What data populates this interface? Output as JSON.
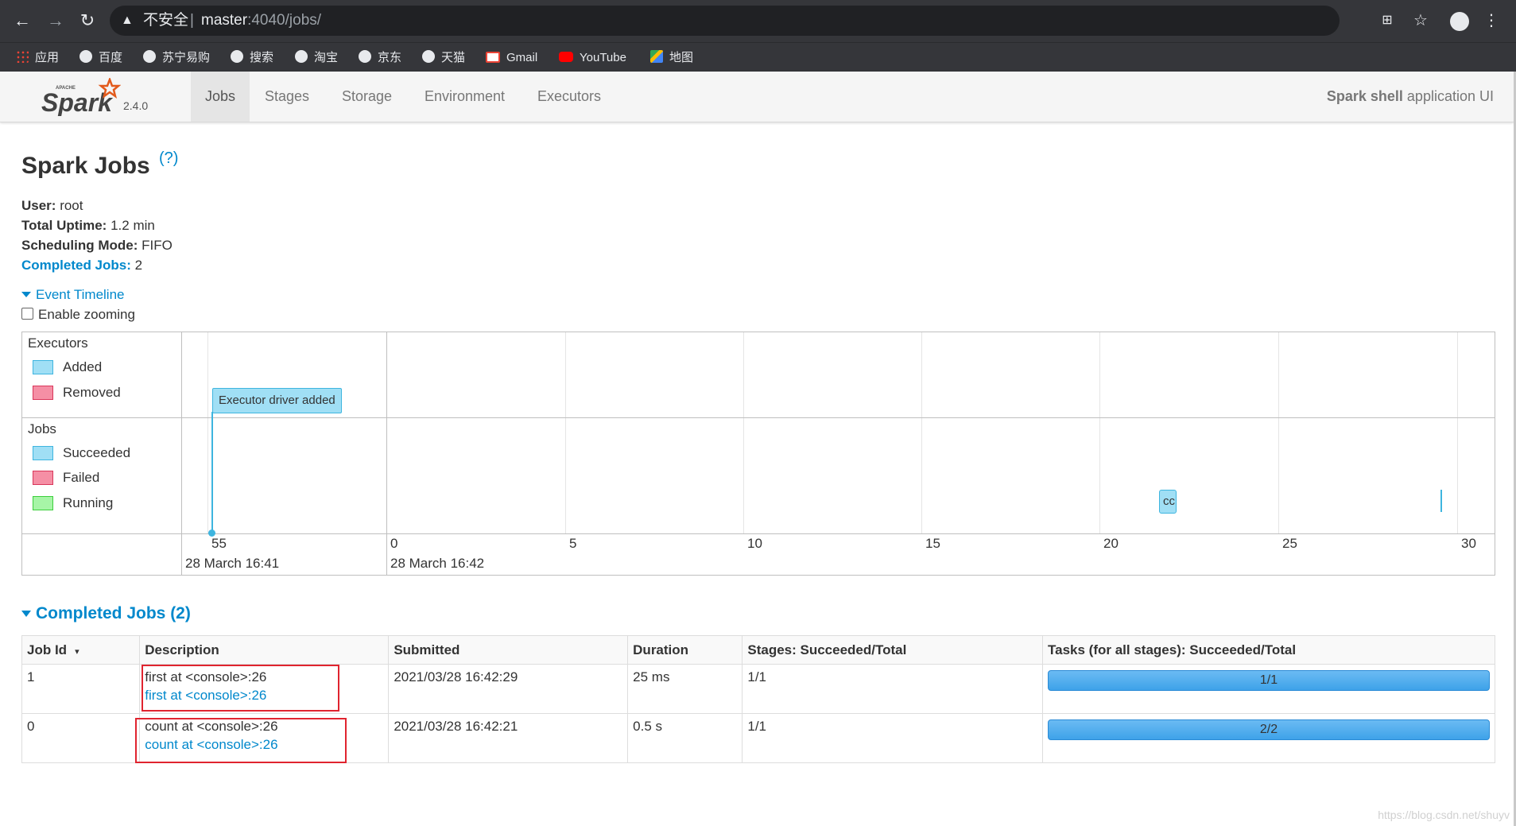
{
  "browser": {
    "insecure_label": "不安全",
    "url_host": "master",
    "url_path": ":4040/jobs/",
    "bookmarks": [
      "应用",
      "百度",
      "苏宁易购",
      "搜索",
      "淘宝",
      "京东",
      "天猫",
      "Gmail",
      "YouTube",
      "地图"
    ]
  },
  "spark": {
    "version": "2.4.0",
    "tabs": [
      "Jobs",
      "Stages",
      "Storage",
      "Environment",
      "Executors"
    ],
    "active_tab": "Jobs",
    "app_title_bold": "Spark shell",
    "app_title_rest": " application UI"
  },
  "page": {
    "title": "Spark Jobs",
    "help": "(?)",
    "user_label": "User:",
    "user_value": " root",
    "uptime_label": "Total Uptime:",
    "uptime_value": " 1.2 min",
    "sched_label": "Scheduling Mode:",
    "sched_value": " FIFO",
    "completed_label": "Completed Jobs:",
    "completed_value": " 2",
    "event_timeline": "Event Timeline",
    "enable_zoom": "Enable zooming"
  },
  "timeline": {
    "executors_label": "Executors",
    "jobs_label": "Jobs",
    "legend_executors": [
      {
        "label": "Added",
        "color": "#a0dff5",
        "border": "#3eb5df"
      },
      {
        "label": "Removed",
        "color": "#f58fa5",
        "border": "#d9365a"
      }
    ],
    "legend_jobs": [
      {
        "label": "Succeeded",
        "color": "#a0dff5",
        "border": "#3eb5df"
      },
      {
        "label": "Failed",
        "color": "#f58fa5",
        "border": "#d9365a"
      },
      {
        "label": "Running",
        "color": "#a7f5a7",
        "border": "#3dcf3d"
      }
    ],
    "executor_event": "Executor driver added",
    "job_bar_label": "cc",
    "ticks": [
      "55",
      "0",
      "5",
      "10",
      "15",
      "20",
      "25",
      "30"
    ],
    "dates": [
      "28 March 16:41",
      "28 March 16:42"
    ]
  },
  "completed": {
    "title": "Completed Jobs (2)",
    "headers": [
      "Job Id",
      "Description",
      "Submitted",
      "Duration",
      "Stages: Succeeded/Total",
      "Tasks (for all stages): Succeeded/Total"
    ],
    "sort_arrow": "▾",
    "rows": [
      {
        "id": "1",
        "desc": "first at <console>:26",
        "desc_link": "first at <console>:26",
        "submitted": "2021/03/28 16:42:29",
        "duration": "25 ms",
        "stages": "1/1",
        "tasks": "1/1",
        "progress": 1.0
      },
      {
        "id": "0",
        "desc": "count at <console>:26",
        "desc_link": "count at <console>:26",
        "submitted": "2021/03/28 16:42:21",
        "duration": "0.5 s",
        "stages": "1/1",
        "tasks": "2/2",
        "progress": 1.0
      }
    ]
  },
  "watermark": "https://blog.csdn.net/shuyv"
}
